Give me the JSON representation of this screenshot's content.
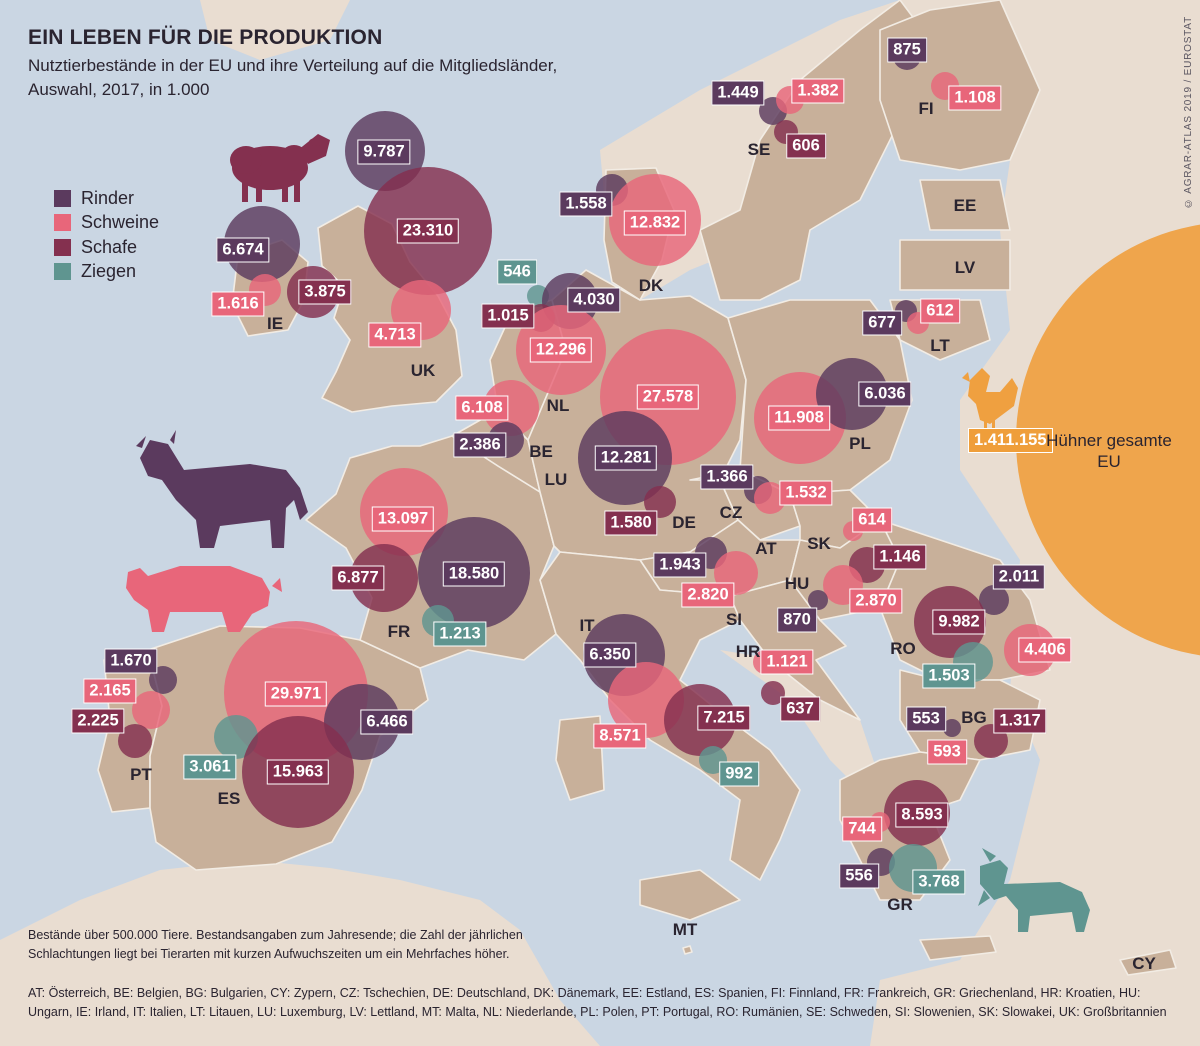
{
  "title": "EIN LEBEN FÜR DIE PRODUKTION",
  "subtitle": "Nutztierbestände in der EU und ihre Verteilung auf die Mitgliedsländer, Auswahl, 2017, in 1.000",
  "credit": "© AGRAR-ATLAS 2019 / EUROSTAT",
  "colors": {
    "rinder": "#5b3a5e",
    "schweine": "#e8667a",
    "schafe": "#84304f",
    "ziegen": "#5f9590",
    "huehner": "#efa040",
    "land": "#c8b09a",
    "land_light": "#e9ddd1",
    "sea": "#cad6e3"
  },
  "legend": [
    {
      "key": "rinder",
      "label": "Rinder",
      "color": "#5b3a5e"
    },
    {
      "key": "schweine",
      "label": "Schweine",
      "color": "#e8667a"
    },
    {
      "key": "schafe",
      "label": "Schafe",
      "color": "#84304f"
    },
    {
      "key": "ziegen",
      "label": "Ziegen",
      "color": "#5f9590"
    }
  ],
  "icons": [
    "sheep-icon",
    "cow-icon",
    "pig-icon",
    "goat-icon",
    "chicken-icon"
  ],
  "countries": [
    "SE",
    "FI",
    "EE",
    "LV",
    "LT",
    "DK",
    "IE",
    "UK",
    "NL",
    "BE",
    "LU",
    "DE",
    "PL",
    "CZ",
    "SK",
    "AT",
    "HU",
    "FR",
    "SI",
    "HR",
    "RO",
    "IT",
    "BG",
    "PT",
    "ES",
    "GR",
    "MT",
    "CY"
  ],
  "bubbles": [
    {
      "country": "FI",
      "type": "rinder",
      "label": "875"
    },
    {
      "country": "FI",
      "type": "schweine",
      "label": "1.108"
    },
    {
      "country": "SE",
      "type": "rinder",
      "label": "1.449"
    },
    {
      "country": "SE",
      "type": "schweine",
      "label": "1.382"
    },
    {
      "country": "SE",
      "type": "schafe",
      "label": "606"
    },
    {
      "country": "DK",
      "type": "rinder",
      "label": "1.558"
    },
    {
      "country": "DK",
      "type": "schweine",
      "label": "12.832"
    },
    {
      "country": "UK",
      "type": "rinder",
      "label": "9.787"
    },
    {
      "country": "UK",
      "type": "schafe",
      "label": "23.310"
    },
    {
      "country": "UK",
      "type": "schweine",
      "label": "4.713"
    },
    {
      "country": "IE",
      "type": "rinder",
      "label": "6.674"
    },
    {
      "country": "IE",
      "type": "schweine",
      "label": "1.616"
    },
    {
      "country": "IE",
      "type": "schafe",
      "label": "3.875"
    },
    {
      "country": "NL",
      "type": "ziegen",
      "label": "546"
    },
    {
      "country": "NL",
      "type": "rinder",
      "label": "4.030"
    },
    {
      "country": "NL",
      "type": "schafe",
      "label": "1.015"
    },
    {
      "country": "NL",
      "type": "schweine",
      "label": "12.296"
    },
    {
      "country": "BE",
      "type": "schweine",
      "label": "6.108"
    },
    {
      "country": "BE",
      "type": "rinder",
      "label": "2.386"
    },
    {
      "country": "DE",
      "type": "schweine",
      "label": "27.578"
    },
    {
      "country": "DE",
      "type": "rinder",
      "label": "12.281"
    },
    {
      "country": "DE",
      "type": "schafe",
      "label": "1.580"
    },
    {
      "country": "LT",
      "type": "rinder",
      "label": "677"
    },
    {
      "country": "LT",
      "type": "schweine",
      "label": "612"
    },
    {
      "country": "PL",
      "type": "schweine",
      "label": "11.908"
    },
    {
      "country": "PL",
      "type": "rinder",
      "label": "6.036"
    },
    {
      "country": "CZ",
      "type": "rinder",
      "label": "1.366"
    },
    {
      "country": "CZ",
      "type": "schweine",
      "label": "1.532"
    },
    {
      "country": "SK",
      "type": "schweine",
      "label": "614"
    },
    {
      "country": "FR",
      "type": "schweine",
      "label": "13.097"
    },
    {
      "country": "FR",
      "type": "schafe",
      "label": "6.877"
    },
    {
      "country": "FR",
      "type": "rinder",
      "label": "18.580"
    },
    {
      "country": "FR",
      "type": "ziegen",
      "label": "1.213"
    },
    {
      "country": "AT",
      "type": "rinder",
      "label": "1.943"
    },
    {
      "country": "AT",
      "type": "schweine",
      "label": "2.820"
    },
    {
      "country": "HU",
      "type": "schafe",
      "label": "1.146"
    },
    {
      "country": "HU",
      "type": "schweine",
      "label": "2.870"
    },
    {
      "country": "HU",
      "type": "rinder",
      "label": "870"
    },
    {
      "country": "RO",
      "type": "rinder",
      "label": "2.011"
    },
    {
      "country": "RO",
      "type": "schafe",
      "label": "9.982"
    },
    {
      "country": "RO",
      "type": "schweine",
      "label": "4.406"
    },
    {
      "country": "RO",
      "type": "ziegen",
      "label": "1.503"
    },
    {
      "country": "IT",
      "type": "rinder",
      "label": "6.350"
    },
    {
      "country": "IT",
      "type": "schweine",
      "label": "8.571"
    },
    {
      "country": "IT",
      "type": "schafe",
      "label": "7.215"
    },
    {
      "country": "IT",
      "type": "ziegen",
      "label": "992"
    },
    {
      "country": "HR",
      "type": "schweine",
      "label": "1.121"
    },
    {
      "country": "HR",
      "type": "schafe",
      "label": "637"
    },
    {
      "country": "BG",
      "type": "rinder",
      "label": "553"
    },
    {
      "country": "BG",
      "type": "schafe",
      "label": "1.317"
    },
    {
      "country": "BG",
      "type": "schweine",
      "label": "593"
    },
    {
      "country": "PT",
      "type": "rinder",
      "label": "1.670"
    },
    {
      "country": "PT",
      "type": "schweine",
      "label": "2.165"
    },
    {
      "country": "PT",
      "type": "schafe",
      "label": "2.225"
    },
    {
      "country": "ES",
      "type": "schweine",
      "label": "29.971"
    },
    {
      "country": "ES",
      "type": "rinder",
      "label": "6.466"
    },
    {
      "country": "ES",
      "type": "ziegen",
      "label": "3.061"
    },
    {
      "country": "ES",
      "type": "schafe",
      "label": "15.963"
    },
    {
      "country": "GR",
      "type": "schafe",
      "label": "8.593"
    },
    {
      "country": "GR",
      "type": "schweine",
      "label": "744"
    },
    {
      "country": "GR",
      "type": "rinder",
      "label": "556"
    },
    {
      "country": "GR",
      "type": "ziegen",
      "label": "3.768"
    }
  ],
  "huehner": {
    "label": "1.411.155",
    "text": "Hühner gesamte EU"
  },
  "footnote": "Bestände über 500.000 Tiere. Bestandsangaben zum Jahresende; die Zahl der jährlichen Schlachtungen liegt bei Tierarten mit kurzen Aufwuchszeiten um ein Mehrfaches höher.",
  "abbreviations": "AT: Österreich, BE: Belgien, BG: Bulgarien, CY: Zypern, CZ: Tschechien, DE: Deutschland, DK: Dänemark, EE: Estland, ES: Spanien, FI: Finnland, FR: Frankreich, GR: Griechenland, HR: Kroatien, HU: Ungarn, IE: Irland, IT: Italien, LT: Litauen, LU: Luxemburg, LV: Lettland, MT: Malta, NL: Niederlande, PL: Polen, PT: Portugal, RO: Rumänien, SE: Schweden, SI: Slowenien, SK: Slowakei, UK: Großbritannien"
}
